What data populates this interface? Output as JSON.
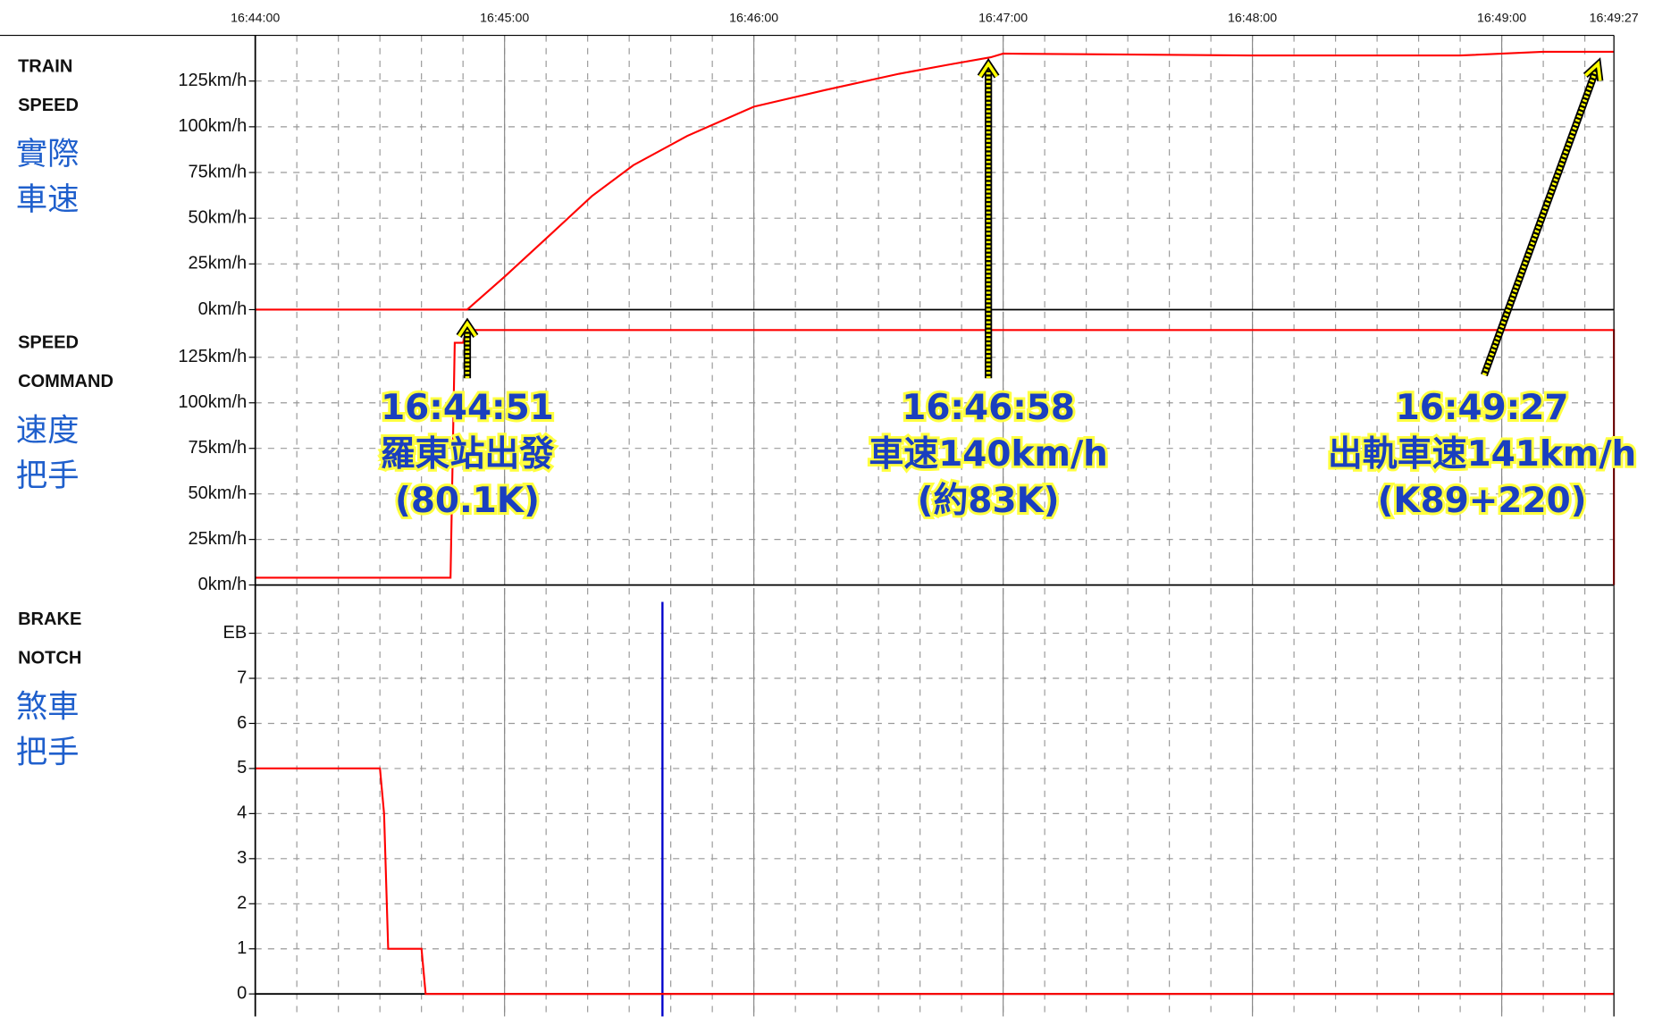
{
  "chart_data": [
    {
      "type": "line",
      "title": [
        "TRAIN",
        "SPEED"
      ],
      "subtitle": [
        "實際",
        "車速"
      ],
      "xlim": [
        "16:44:00",
        "16:49:27"
      ],
      "xticks": [
        "16:44:00",
        "16:45:00",
        "16:46:00",
        "16:47:00",
        "16:48:00",
        "16:49:00",
        "16:49:27"
      ],
      "ylim": [
        0,
        150
      ],
      "yticks": [
        {
          "value": 0,
          "label": "0km/h"
        },
        {
          "value": 25,
          "label": "25km/h"
        },
        {
          "value": 50,
          "label": "50km/h"
        },
        {
          "value": 75,
          "label": "75km/h"
        },
        {
          "value": 100,
          "label": "100km/h"
        },
        {
          "value": 125,
          "label": "125km/h"
        }
      ],
      "grid": true,
      "series": [
        {
          "color": "#ff0000",
          "x": [
            "16:44:00",
            "16:44:51",
            "16:45:00",
            "16:45:11",
            "16:45:21",
            "16:45:31",
            "16:45:44",
            "16:46:00",
            "16:46:17",
            "16:46:35",
            "16:46:47",
            "16:46:57",
            "16:47:00",
            "16:48:00",
            "16:48:50",
            "16:49:10",
            "16:49:27"
          ],
          "values": [
            0,
            0,
            18,
            41,
            62,
            79,
            95,
            111,
            120,
            129,
            134,
            138,
            140,
            139,
            139,
            141,
            141
          ]
        }
      ]
    },
    {
      "type": "line",
      "title": [
        "SPEED",
        "COMMAND"
      ],
      "subtitle": [
        "速度",
        "把手"
      ],
      "ylim": [
        0,
        150
      ],
      "yticks": [
        {
          "value": 0,
          "label": "0km/h"
        },
        {
          "value": 25,
          "label": "25km/h"
        },
        {
          "value": 50,
          "label": "50km/h"
        },
        {
          "value": 75,
          "label": "75km/h"
        },
        {
          "value": 100,
          "label": "100km/h"
        },
        {
          "value": 125,
          "label": "125km/h"
        }
      ],
      "grid": true,
      "series": [
        {
          "color": "#ff0000",
          "x": [
            "16:44:00",
            "16:44:47",
            "16:44:48",
            "16:44:50",
            "16:44:51",
            "16:49:27",
            "16:49:27"
          ],
          "values": [
            4,
            4,
            133,
            133,
            140,
            140,
            0
          ]
        }
      ]
    },
    {
      "type": "line",
      "title": [
        "BRAKE",
        "NOTCH"
      ],
      "subtitle": [
        "煞車",
        "把手"
      ],
      "ylim": [
        -0.5,
        9
      ],
      "yticks": [
        0,
        1,
        2,
        3,
        4,
        5,
        6,
        7,
        {
          "value": 8,
          "label": "EB"
        }
      ],
      "grid": true,
      "event_line": {
        "x": "16:45:38",
        "color": "#0000cc"
      },
      "series": [
        {
          "color": "#ff0000",
          "x": [
            "16:44:00",
            "16:44:30",
            "16:44:31",
            "16:44:32",
            "16:44:40",
            "16:44:41",
            "16:49:27"
          ],
          "values": [
            5,
            5,
            4,
            1,
            1,
            0,
            0
          ]
        }
      ]
    }
  ],
  "annotations": [
    {
      "lines": [
        "16:44:51",
        "羅東站出發",
        "(80.1K)"
      ]
    },
    {
      "lines": [
        "16:46:58",
        "車速140km/h",
        "(約83K)"
      ]
    },
    {
      "lines": [
        "16:49:27",
        "出軌車速141km/h",
        "(K89+220)"
      ]
    }
  ]
}
